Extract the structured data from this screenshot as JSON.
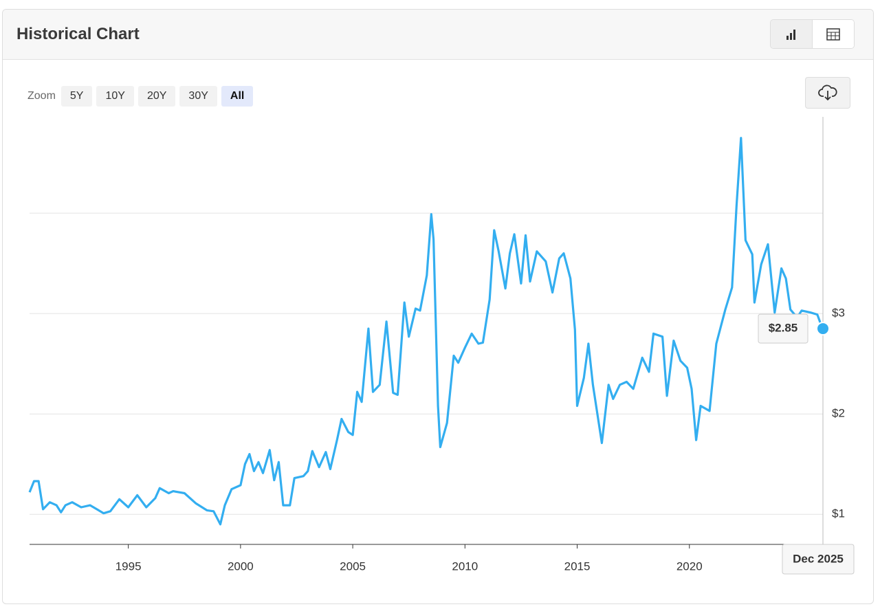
{
  "header": {
    "title": "Historical Chart"
  },
  "zoom": {
    "label": "Zoom",
    "options": [
      "5Y",
      "10Y",
      "20Y",
      "30Y",
      "All"
    ],
    "active": "All"
  },
  "chart_data": {
    "type": "line",
    "color": "#33aef0",
    "x": [
      1990.6,
      1990.8,
      1991.0,
      1991.2,
      1991.5,
      1991.8,
      1992.0,
      1992.2,
      1992.5,
      1992.9,
      1993.3,
      1993.6,
      1993.9,
      1994.2,
      1994.6,
      1995.0,
      1995.4,
      1995.8,
      1996.2,
      1996.4,
      1996.8,
      1997.0,
      1997.5,
      1998.0,
      1998.5,
      1998.8,
      1999.1,
      1999.3,
      1999.6,
      2000.0,
      2000.2,
      2000.4,
      2000.6,
      2000.8,
      2001.0,
      2001.3,
      2001.5,
      2001.7,
      2001.9,
      2002.2,
      2002.4,
      2002.8,
      2003.0,
      2003.2,
      2003.5,
      2003.8,
      2004.0,
      2004.3,
      2004.5,
      2004.8,
      2005.0,
      2005.2,
      2005.4,
      2005.7,
      2005.9,
      2006.2,
      2006.5,
      2006.8,
      2007.0,
      2007.3,
      2007.5,
      2007.8,
      2008.0,
      2008.3,
      2008.5,
      2008.6,
      2008.8,
      2008.9,
      2009.2,
      2009.5,
      2009.7,
      2010.0,
      2010.3,
      2010.6,
      2010.8,
      2011.1,
      2011.3,
      2011.5,
      2011.8,
      2012.0,
      2012.2,
      2012.5,
      2012.7,
      2012.9,
      2013.2,
      2013.6,
      2013.9,
      2014.2,
      2014.4,
      2014.7,
      2014.9,
      2015.0,
      2015.3,
      2015.5,
      2015.7,
      2016.1,
      2016.4,
      2016.6,
      2016.9,
      2017.2,
      2017.5,
      2017.9,
      2018.2,
      2018.4,
      2018.8,
      2019.0,
      2019.3,
      2019.6,
      2019.9,
      2020.1,
      2020.3,
      2020.5,
      2020.9,
      2021.2,
      2021.6,
      2021.9,
      2022.1,
      2022.3,
      2022.5,
      2022.8,
      2022.9,
      2023.2,
      2023.5,
      2023.8,
      2024.1,
      2024.3,
      2024.5,
      2024.8,
      2025.0,
      2025.4,
      2025.7,
      2025.93
    ],
    "values": [
      1.22,
      1.33,
      1.33,
      1.05,
      1.12,
      1.09,
      1.02,
      1.09,
      1.12,
      1.07,
      1.09,
      1.05,
      1.01,
      1.03,
      1.15,
      1.07,
      1.19,
      1.07,
      1.16,
      1.26,
      1.21,
      1.23,
      1.21,
      1.11,
      1.04,
      1.03,
      0.9,
      1.09,
      1.25,
      1.29,
      1.5,
      1.6,
      1.43,
      1.52,
      1.41,
      1.64,
      1.34,
      1.52,
      1.09,
      1.09,
      1.36,
      1.38,
      1.43,
      1.63,
      1.47,
      1.62,
      1.45,
      1.74,
      1.95,
      1.82,
      1.79,
      2.22,
      2.12,
      2.85,
      2.22,
      2.29,
      2.92,
      2.21,
      2.19,
      3.11,
      2.77,
      3.05,
      3.03,
      3.38,
      3.99,
      3.74,
      2.08,
      1.67,
      1.91,
      2.58,
      2.51,
      2.66,
      2.8,
      2.7,
      2.71,
      3.14,
      3.83,
      3.62,
      3.25,
      3.6,
      3.79,
      3.3,
      3.78,
      3.32,
      3.62,
      3.52,
      3.21,
      3.55,
      3.6,
      3.35,
      2.84,
      2.08,
      2.36,
      2.7,
      2.29,
      1.71,
      2.29,
      2.15,
      2.29,
      2.32,
      2.25,
      2.56,
      2.42,
      2.8,
      2.77,
      2.18,
      2.73,
      2.53,
      2.46,
      2.25,
      1.74,
      2.08,
      2.03,
      2.7,
      3.04,
      3.26,
      4.07,
      4.75,
      3.73,
      3.59,
      3.11,
      3.49,
      3.69,
      3.01,
      3.45,
      3.35,
      3.04,
      2.96,
      3.03,
      3.01,
      2.99,
      2.85
    ],
    "xlim": [
      1990.6,
      2025.95
    ],
    "ylim": [
      0.7,
      4.96
    ],
    "xticks": [
      1995,
      2000,
      2005,
      2010,
      2015,
      2020
    ],
    "yticks": [
      {
        "value": 1,
        "label": "$1"
      },
      {
        "value": 2,
        "label": "$2"
      },
      {
        "value": 3,
        "label": "$3"
      }
    ],
    "grid_lines": [
      1,
      2,
      3,
      4
    ],
    "tooltip": {
      "value": 2.85,
      "label": "$2.85",
      "x_label": "Dec 2025"
    }
  }
}
